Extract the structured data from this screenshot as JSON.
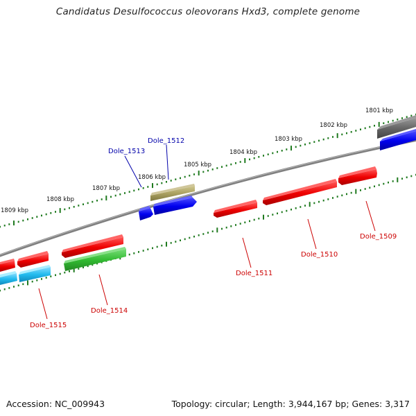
{
  "title": "Candidatus Desulfococcus oleovorans Hxd3, complete genome",
  "accession_label": "Accession: NC_009943",
  "summary_label": "Topology: circular; Length: 3,944,167 bp; Genes: 3,317",
  "colors": {
    "backbone": "#8a8a8a",
    "tick": "#1f7a1f",
    "label_red": "#cc0000",
    "label_blue": "#0000aa",
    "gene_red": "#ee0000",
    "gene_blue": "#0000ee",
    "gene_cyan": "#22bbee",
    "gene_green": "#33bb33",
    "gene_olive": "#aaa060",
    "gene_gray": "#666666"
  },
  "chart_data": {
    "type": "genome-map",
    "scale_labels": [
      "1801 kbp",
      "1802 kbp",
      "1803 kbp",
      "1804 kbp",
      "1805 kbp",
      "1806 kbp",
      "1807 kbp",
      "1808 kbp",
      "1809 kbp"
    ],
    "genes": [
      {
        "name": "Dole_1509",
        "color": "label_red"
      },
      {
        "name": "Dole_1510",
        "color": "label_red"
      },
      {
        "name": "Dole_1511",
        "color": "label_red"
      },
      {
        "name": "Dole_1512",
        "color": "label_blue"
      },
      {
        "name": "Dole_1513",
        "color": "label_blue"
      },
      {
        "name": "Dole_1514",
        "color": "label_red"
      },
      {
        "name": "Dole_1515",
        "color": "label_red"
      }
    ]
  }
}
